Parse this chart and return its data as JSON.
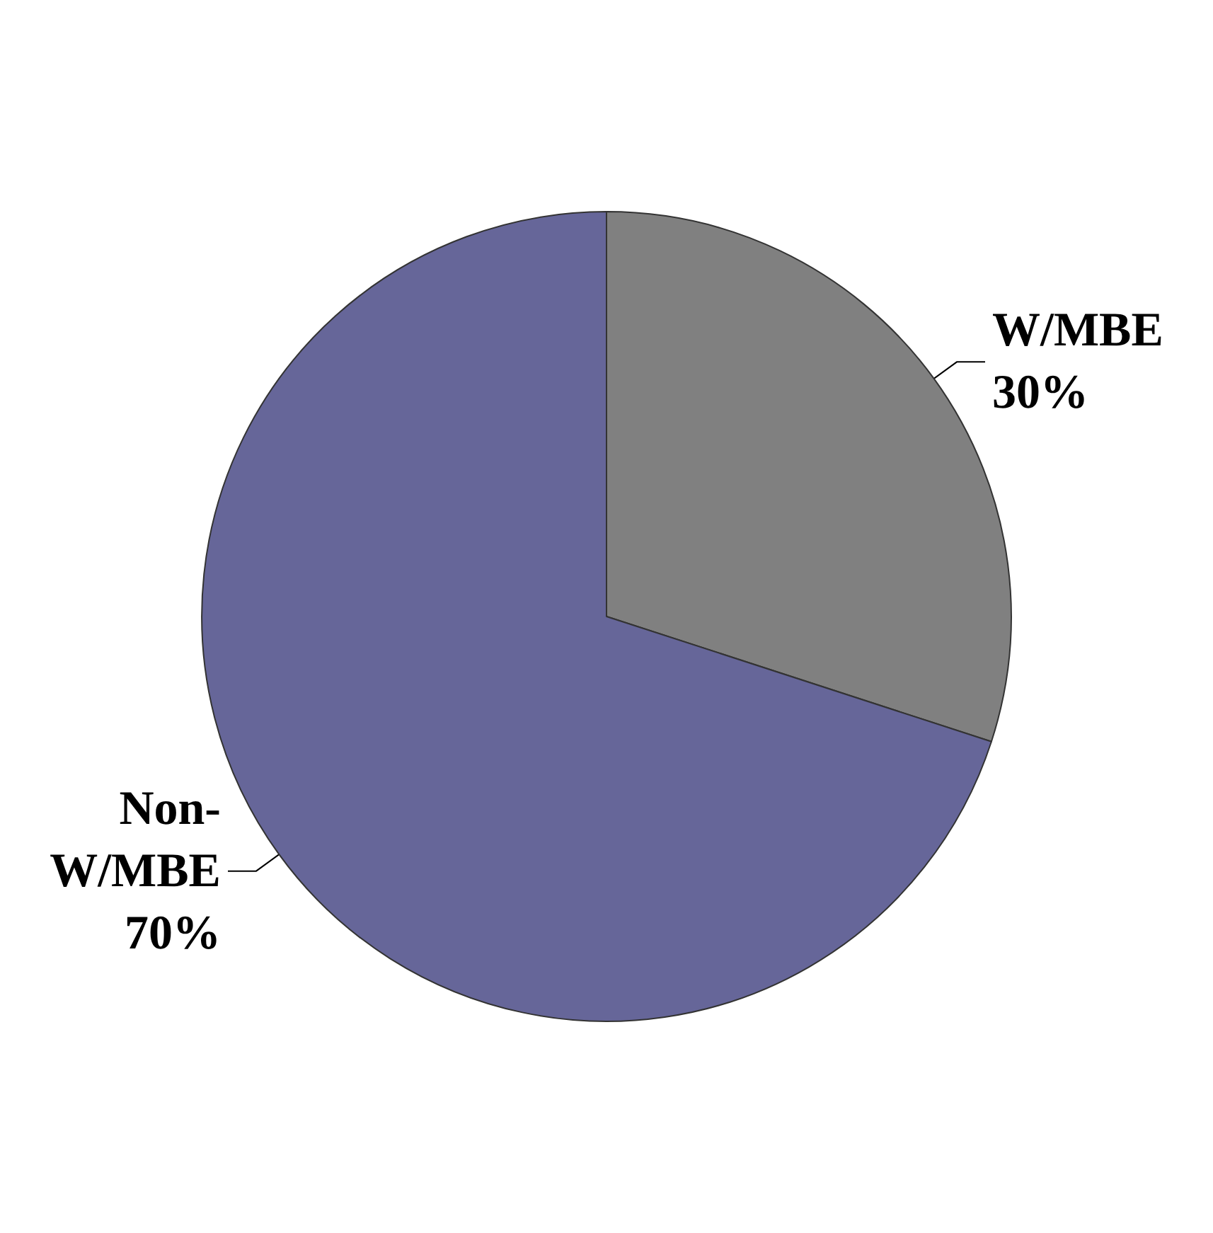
{
  "chart_data": {
    "type": "pie",
    "categories": [
      "W/MBE",
      "Non-W/MBE"
    ],
    "values": [
      30,
      70
    ],
    "colors": [
      "#808080",
      "#666699"
    ],
    "value_labels": [
      "30%",
      "70%"
    ],
    "legend": false
  }
}
